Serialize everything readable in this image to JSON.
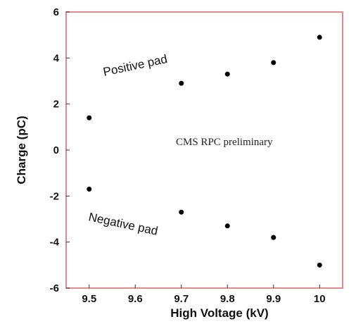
{
  "chart_data": {
    "type": "scatter",
    "title": "",
    "xlabel": "High Voltage  (kV)",
    "ylabel": "Charge  (pC)",
    "xlim": [
      9.45,
      10.05
    ],
    "ylim": [
      -6,
      6
    ],
    "x_ticks": [
      "9.5",
      "9.6",
      "9.7",
      "9.8",
      "9.9",
      "10"
    ],
    "x_tick_values": [
      9.5,
      9.6,
      9.7,
      9.8,
      9.9,
      10.0
    ],
    "y_ticks": [
      "6",
      "4",
      "2",
      "0",
      "-2",
      "-4",
      "-6"
    ],
    "y_tick_values": [
      6,
      4,
      2,
      0,
      -2,
      -4,
      -6
    ],
    "grid": false,
    "frame_color": "#e08a8a",
    "marker_color": "#000000",
    "series": [
      {
        "name": "Positive pad",
        "x": [
          9.5,
          9.7,
          9.8,
          9.9,
          10.0
        ],
        "y": [
          1.4,
          2.9,
          3.3,
          3.8,
          4.9
        ]
      },
      {
        "name": "Negative pad",
        "x": [
          9.5,
          9.7,
          9.8,
          9.9,
          10.0
        ],
        "y": [
          -1.7,
          -2.7,
          -3.3,
          -3.8,
          -5.0
        ]
      }
    ],
    "annotations": [
      {
        "text": "CMS RPC preliminary"
      }
    ]
  }
}
